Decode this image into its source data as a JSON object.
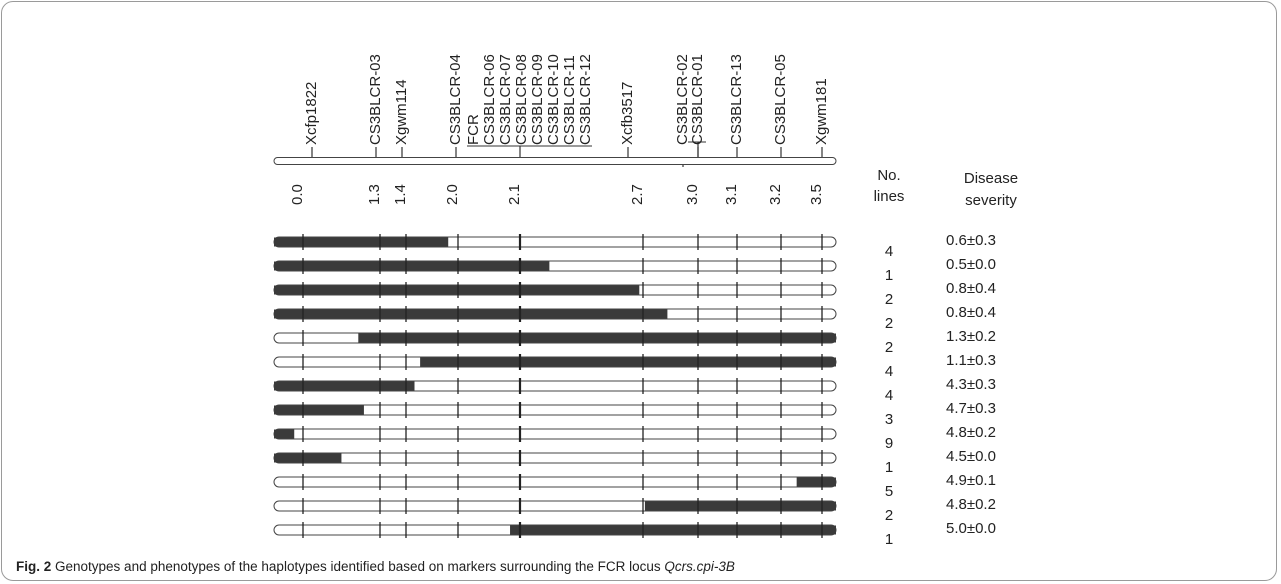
{
  "figure": {
    "markers": [
      {
        "name": "Xcfp1822",
        "pos": "0.0"
      },
      {
        "name": "CS3BLCR-03",
        "pos": "1.3"
      },
      {
        "name": "Xgwm114",
        "pos": "1.4"
      },
      {
        "name": "CS3BLCR-04",
        "pos": "2.0"
      },
      {
        "name": "FCR",
        "pos": ""
      },
      {
        "name": "CS3BLCR-06",
        "pos": ""
      },
      {
        "name": "CS3BLCR-07",
        "pos": "2.1"
      },
      {
        "name": "CS3BLCR-08",
        "pos": ""
      },
      {
        "name": "CS3BLCR-09",
        "pos": ""
      },
      {
        "name": "CS3BLCR-10",
        "pos": ""
      },
      {
        "name": "CS3BLCR-11",
        "pos": ""
      },
      {
        "name": "CS3BLCR-12",
        "pos": ""
      },
      {
        "name": "Xcfb3517",
        "pos": "2.7"
      },
      {
        "name": "CS3BLCR-02",
        "pos": ""
      },
      {
        "name": "CS3BLCR-01",
        "pos": "3.0"
      },
      {
        "name": "CS3BLCR-13",
        "pos": "3.1"
      },
      {
        "name": "CS3BLCR-05",
        "pos": "3.2"
      },
      {
        "name": "Xgwm181",
        "pos": "3.5"
      }
    ],
    "header_lines_line1": "No.",
    "header_lines_line2": "lines",
    "header_severity_line1": "Disease",
    "header_severity_line2": "severity",
    "haplotypes": [
      {
        "start": 0.0,
        "end": 0.31,
        "lines": "4",
        "severity": "0.6±0.3"
      },
      {
        "start": 0.0,
        "end": 0.49,
        "lines": "1",
        "severity": "0.5±0.0"
      },
      {
        "start": 0.0,
        "end": 0.65,
        "lines": "2",
        "severity": "0.8±0.4"
      },
      {
        "start": 0.0,
        "end": 0.7,
        "lines": "2",
        "severity": "0.8±0.4"
      },
      {
        "start": 0.15,
        "end": 1.0,
        "lines": "2",
        "severity": "1.3±0.2"
      },
      {
        "start": 0.26,
        "end": 1.0,
        "lines": "4",
        "severity": "1.1±0.3"
      },
      {
        "start": 0.0,
        "end": 0.25,
        "lines": "4",
        "severity": "4.3±0.3"
      },
      {
        "start": 0.0,
        "end": 0.16,
        "lines": "3",
        "severity": "4.7±0.3"
      },
      {
        "start": 0.0,
        "end": 0.036,
        "lines": "9",
        "severity": "4.8±0.2"
      },
      {
        "start": 0.0,
        "end": 0.12,
        "lines": "1",
        "severity": "4.5±0.0"
      },
      {
        "start": 0.93,
        "end": 1.0,
        "lines": "5",
        "severity": "4.9±0.1"
      },
      {
        "start": 0.66,
        "end": 1.0,
        "lines": "2",
        "severity": "4.8±0.2"
      },
      {
        "start": 0.42,
        "end": 1.0,
        "lines": "1",
        "severity": "5.0±0.0"
      }
    ]
  },
  "caption": {
    "label": "Fig. 2",
    "text": " Genotypes and phenotypes of the haplotypes identified based on markers surrounding the FCR locus ",
    "locus": "Qcrs.cpi-3B"
  }
}
